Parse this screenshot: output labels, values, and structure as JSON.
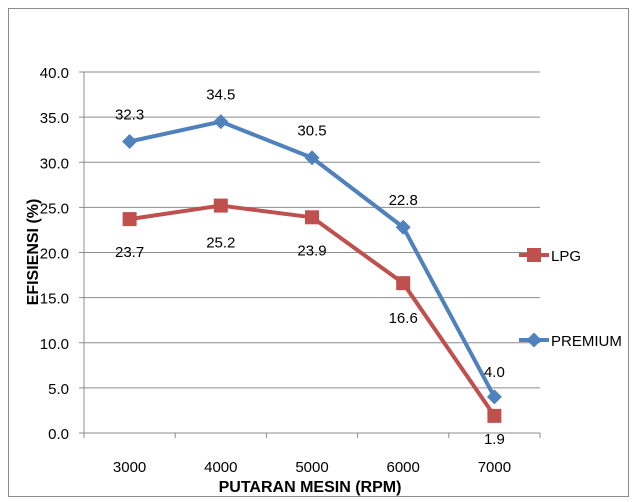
{
  "chart_data": {
    "type": "line",
    "title": "",
    "xlabel": "PUTARAN MESIN (RPM)",
    "ylabel": "EFISIENSI (%)",
    "categories": [
      "3000",
      "4000",
      "5000",
      "6000",
      "7000"
    ],
    "ylim": [
      0,
      40
    ],
    "yticks": [
      "0.0",
      "5.0",
      "10.0",
      "15.0",
      "20.0",
      "25.0",
      "30.0",
      "35.0",
      "40.0"
    ],
    "grid": true,
    "legend_position": "right",
    "series": [
      {
        "name": "LPG",
        "values": [
          23.7,
          25.2,
          23.9,
          16.6,
          1.9
        ],
        "labels": [
          "23.7",
          "25.2",
          "23.9",
          "16.6",
          "1.9"
        ],
        "color": "#C0504D",
        "marker": "square"
      },
      {
        "name": "PREMIUM",
        "values": [
          32.3,
          34.5,
          30.5,
          22.8,
          4.0
        ],
        "labels": [
          "32.3",
          "34.5",
          "30.5",
          "22.8",
          "4.0"
        ],
        "color": "#4F81BD",
        "marker": "diamond"
      }
    ]
  }
}
